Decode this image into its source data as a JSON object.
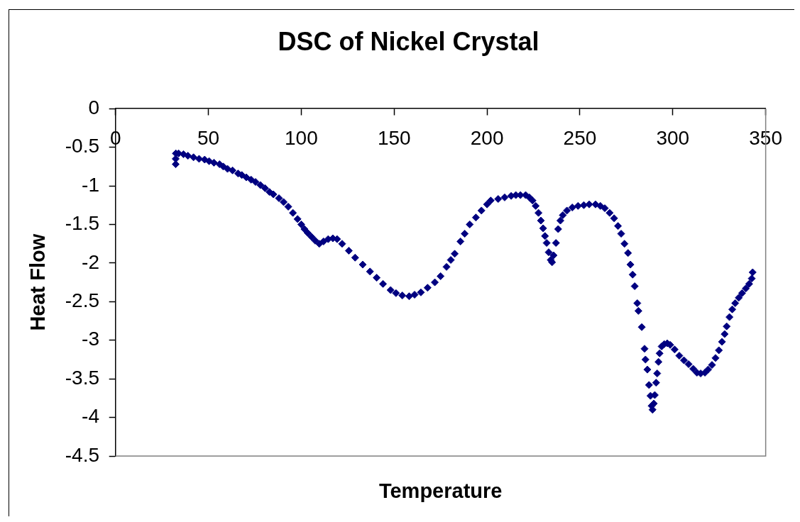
{
  "chart_data": {
    "type": "scatter",
    "title": "DSC of Nickel Crystal",
    "xlabel": "Temperature",
    "ylabel": "Heat Flow",
    "color": "#000080",
    "marker": "diamond",
    "xlim": [
      0,
      350
    ],
    "xticks": [
      0,
      50,
      100,
      150,
      200,
      250,
      300,
      350
    ],
    "ylim": [
      -4.5,
      0
    ],
    "yticks": [
      0,
      -0.5,
      -1,
      -1.5,
      -2,
      -2.5,
      -3,
      -3.5,
      -4,
      -4.5
    ],
    "x": [
      32.4,
      32.4,
      32.5,
      34,
      36.6,
      39,
      42,
      45,
      48,
      50.4,
      53,
      56,
      58,
      60.3,
      63,
      66,
      68,
      70.4,
      73,
      75.4,
      78,
      80.5,
      82.9,
      85,
      88,
      90.5,
      93,
      95.5,
      98,
      100,
      101.7,
      103.5,
      105.5,
      107.5,
      109.7,
      112,
      114.5,
      117,
      119.3,
      122,
      125.6,
      129,
      133.1,
      137,
      140.6,
      144,
      148.1,
      151,
      154.4,
      158.1,
      161,
      164.4,
      168,
      171.9,
      175,
      178.2,
      180.5,
      182.6,
      185.7,
      188,
      190.7,
      194,
      197,
      200,
      202,
      206,
      209.5,
      213,
      215.5,
      218,
      220.8,
      222.8,
      224.5,
      226.2,
      227.7,
      229,
      230.2,
      231.2,
      232.1,
      233.2,
      234.3,
      235,
      235.8,
      237.1,
      238.3,
      239.5,
      240.8,
      243,
      245.9,
      249,
      252.1,
      255,
      258.4,
      261,
      263.4,
      266,
      268.4,
      270.5,
      272.2,
      274,
      275.9,
      277.2,
      278.4,
      279.5,
      280.9,
      281.5,
      283.3,
      284.8,
      285.3,
      286.3,
      287.2,
      288,
      288.6,
      289.1,
      289.8,
      290.3,
      291,
      291.6,
      292.3,
      292.9,
      294,
      295.4,
      297,
      298.6,
      301,
      303.5,
      306,
      308.5,
      311,
      313,
      315,
      317.3,
      319,
      321.1,
      323,
      324.8,
      326.5,
      327.9,
      329,
      330.5,
      332,
      333.6,
      335.5,
      337.3,
      339.3,
      341.1,
      342.5,
      343
    ],
    "values": [
      -0.72,
      -0.65,
      -0.58,
      -0.58,
      -0.59,
      -0.61,
      -0.63,
      -0.65,
      -0.66,
      -0.68,
      -0.7,
      -0.72,
      -0.75,
      -0.78,
      -0.8,
      -0.84,
      -0.86,
      -0.89,
      -0.92,
      -0.95,
      -0.99,
      -1.03,
      -1.08,
      -1.11,
      -1.16,
      -1.21,
      -1.27,
      -1.35,
      -1.43,
      -1.5,
      -1.56,
      -1.61,
      -1.66,
      -1.71,
      -1.75,
      -1.72,
      -1.69,
      -1.68,
      -1.69,
      -1.75,
      -1.84,
      -1.93,
      -2.02,
      -2.11,
      -2.19,
      -2.27,
      -2.35,
      -2.39,
      -2.42,
      -2.43,
      -2.41,
      -2.38,
      -2.32,
      -2.25,
      -2.17,
      -2.05,
      -1.96,
      -1.88,
      -1.72,
      -1.62,
      -1.5,
      -1.41,
      -1.32,
      -1.24,
      -1.19,
      -1.17,
      -1.15,
      -1.13,
      -1.12,
      -1.12,
      -1.12,
      -1.15,
      -1.19,
      -1.26,
      -1.35,
      -1.45,
      -1.55,
      -1.65,
      -1.74,
      -1.86,
      -1.96,
      -1.99,
      -1.9,
      -1.74,
      -1.56,
      -1.45,
      -1.38,
      -1.32,
      -1.28,
      -1.26,
      -1.25,
      -1.24,
      -1.24,
      -1.26,
      -1.29,
      -1.35,
      -1.42,
      -1.52,
      -1.62,
      -1.75,
      -1.87,
      -2.02,
      -2.15,
      -2.3,
      -2.52,
      -2.62,
      -2.83,
      -3.11,
      -3.25,
      -3.38,
      -3.58,
      -3.72,
      -3.85,
      -3.9,
      -3.82,
      -3.71,
      -3.55,
      -3.43,
      -3.28,
      -3.17,
      -3.08,
      -3.05,
      -3.04,
      -3.06,
      -3.12,
      -3.2,
      -3.26,
      -3.31,
      -3.37,
      -3.42,
      -3.43,
      -3.42,
      -3.38,
      -3.32,
      -3.23,
      -3.13,
      -3.02,
      -2.92,
      -2.82,
      -2.7,
      -2.6,
      -2.52,
      -2.45,
      -2.39,
      -2.33,
      -2.27,
      -2.2,
      -2.12
    ]
  }
}
